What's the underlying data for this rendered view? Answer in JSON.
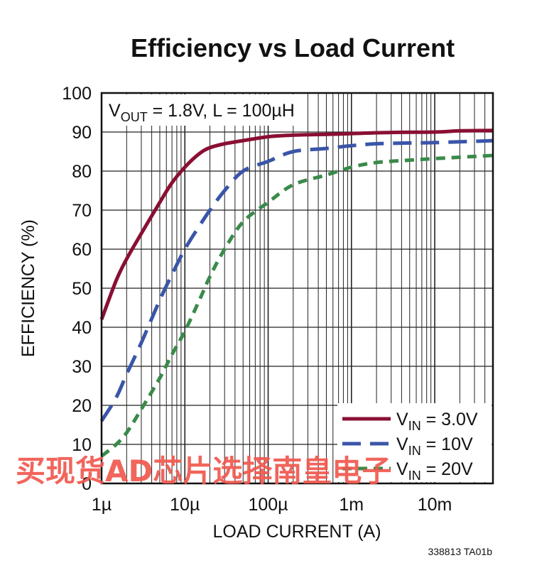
{
  "chart_data": {
    "type": "line",
    "title": "Efficiency vs Load Current",
    "xlabel": "LOAD CURRENT (A)",
    "ylabel": "EFFICIENCY (%)",
    "x_scale": "log",
    "xlim": [
      1e-06,
      0.05
    ],
    "ylim": [
      0,
      100
    ],
    "x_ticks": [
      {
        "value": 1e-06,
        "label": "1µ"
      },
      {
        "value": 1e-05,
        "label": "10µ"
      },
      {
        "value": 0.0001,
        "label": "100µ"
      },
      {
        "value": 0.001,
        "label": "1m"
      },
      {
        "value": 0.01,
        "label": "10m"
      }
    ],
    "y_ticks": [
      0,
      10,
      20,
      30,
      40,
      50,
      60,
      70,
      80,
      90,
      100
    ],
    "grid": true,
    "annotation": {
      "prefix": "V",
      "sub": "OUT",
      "rest": " = 1.8V, L = 100µH"
    },
    "legend_position": "bottom-right",
    "series": [
      {
        "name": "3.0V",
        "label_prefix": "V",
        "label_sub": "IN",
        "label_rest": " = 3.0V",
        "color": "#8a0f33",
        "dash": "solid",
        "points": [
          [
            1e-06,
            42
          ],
          [
            1.5e-06,
            52
          ],
          [
            2e-06,
            57.5
          ],
          [
            3e-06,
            64
          ],
          [
            5e-06,
            72
          ],
          [
            7e-06,
            77
          ],
          [
            1e-05,
            81
          ],
          [
            1.5e-05,
            84.5
          ],
          [
            2e-05,
            86
          ],
          [
            3e-05,
            87
          ],
          [
            5e-05,
            87.8
          ],
          [
            0.0001,
            88.8
          ],
          [
            0.0002,
            89.2
          ],
          [
            0.0005,
            89.4
          ],
          [
            0.001,
            89.6
          ],
          [
            0.003,
            89.9
          ],
          [
            0.01,
            90.0
          ],
          [
            0.02,
            90.3
          ],
          [
            0.05,
            90.4
          ]
        ]
      },
      {
        "name": "10V",
        "label_prefix": "V",
        "label_sub": "IN",
        "label_rest": " = 10V",
        "color": "#3a55a8",
        "dash": "long",
        "points": [
          [
            1e-06,
            16
          ],
          [
            1.5e-06,
            22
          ],
          [
            2e-06,
            28
          ],
          [
            3e-06,
            36
          ],
          [
            5e-06,
            47
          ],
          [
            7e-06,
            53.5
          ],
          [
            1e-05,
            60
          ],
          [
            1.5e-05,
            66
          ],
          [
            2e-05,
            70
          ],
          [
            3e-05,
            75
          ],
          [
            5e-05,
            80
          ],
          [
            0.0001,
            82.5
          ],
          [
            0.0002,
            85
          ],
          [
            0.0005,
            85.8
          ],
          [
            0.001,
            86.5
          ],
          [
            0.002,
            87
          ],
          [
            0.005,
            87.2
          ],
          [
            0.01,
            87.3
          ],
          [
            0.05,
            87.8
          ]
        ]
      },
      {
        "name": "20V",
        "label_prefix": "V",
        "label_sub": "IN",
        "label_rest": " = 20V",
        "color": "#3a8a4a",
        "dash": "short",
        "points": [
          [
            1e-06,
            7
          ],
          [
            1.5e-06,
            10
          ],
          [
            2e-06,
            13
          ],
          [
            3e-06,
            19
          ],
          [
            5e-06,
            27
          ],
          [
            7e-06,
            33
          ],
          [
            1e-05,
            39
          ],
          [
            1.5e-05,
            47
          ],
          [
            2e-05,
            53
          ],
          [
            3e-05,
            60
          ],
          [
            5e-05,
            67
          ],
          [
            0.0001,
            72
          ],
          [
            0.0002,
            76.5
          ],
          [
            0.0005,
            79
          ],
          [
            0.001,
            81
          ],
          [
            0.002,
            82.2
          ],
          [
            0.005,
            82.8
          ],
          [
            0.01,
            83.2
          ],
          [
            0.05,
            84
          ]
        ]
      }
    ]
  },
  "figure_code": "338813 TA01b",
  "watermark": "买现货AD芯片选择南皇电子"
}
